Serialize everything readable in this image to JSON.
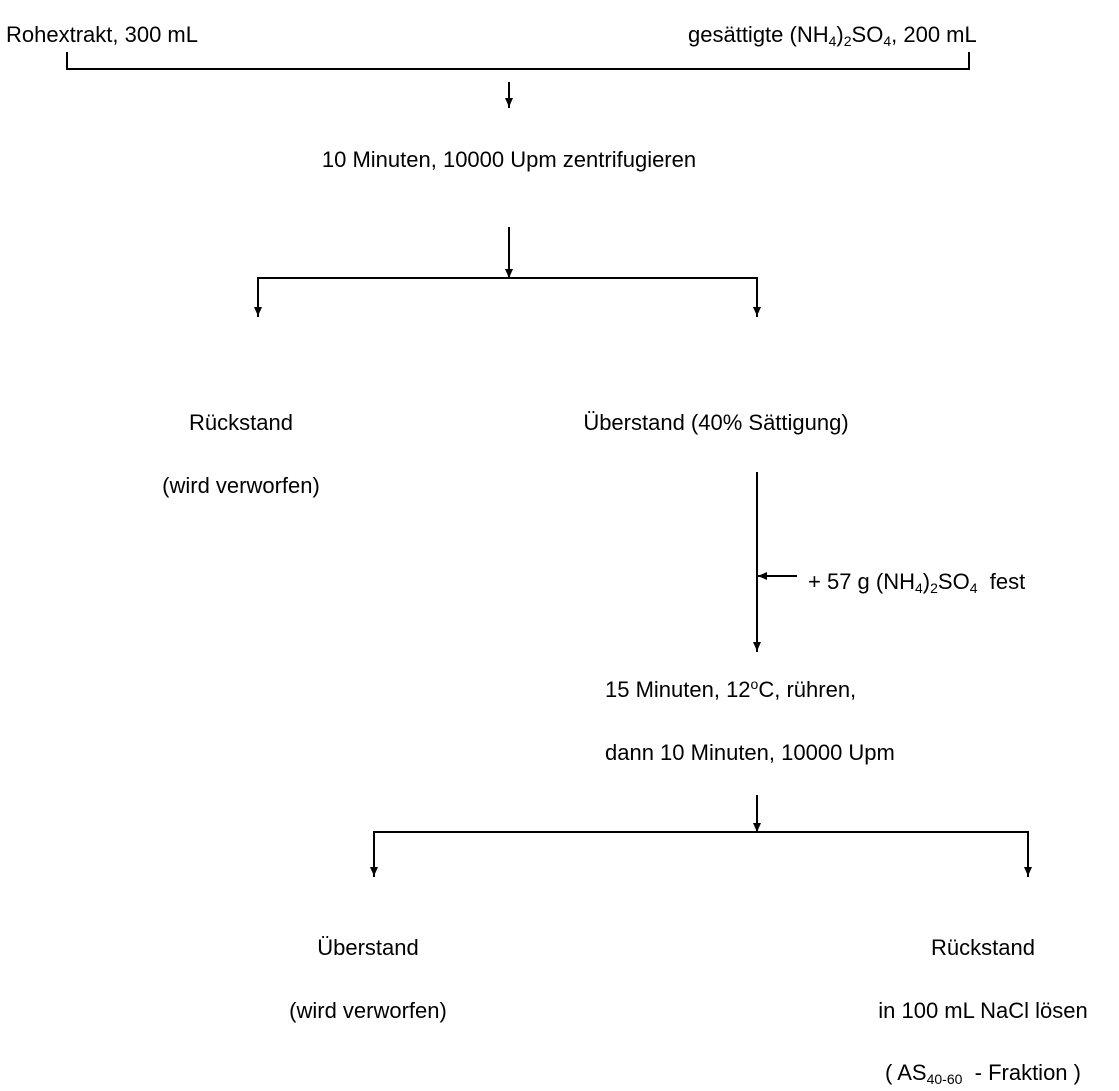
{
  "line_color": "#000000",
  "nodes": {
    "crude_extract": "Rohextrakt, 300 mL",
    "ammonium_sulfate_solution": {
      "prefix": "gesättigte (NH",
      "sub1": "4",
      "mid": ")",
      "sub2": "2",
      "middle": "SO",
      "sub3": "4",
      "suffix": ", 200 mL"
    },
    "centrifuge_step": "10 Minuten, 10000 Upm zentrifugieren",
    "residue_1": {
      "title": "Rückstand",
      "note": "(wird verworfen)"
    },
    "supernatant_1": "Überstand (40% Sättigung)",
    "solid_addition": {
      "prefix": "+ 57 g (NH",
      "sub1": "4",
      "mid": ")",
      "sub2": "2",
      "middle": "SO",
      "sub3": "4",
      "suffix": "  fest"
    },
    "stir_step": {
      "prefix": "15 Minuten, 12",
      "sup": "o",
      "suffix": "C, rühren,"
    },
    "second_centrifuge": "dann 10 Minuten, 10000 Upm",
    "supernatant_2": {
      "title": "Überstand",
      "note": "(wird verworfen)"
    },
    "residue_2": {
      "title": "Rückstand",
      "note": "in 100 mL NaCl lösen",
      "fraction": {
        "prefix": "( AS",
        "sub": "40-60",
        "suffix": "  - Fraktion )"
      }
    }
  }
}
